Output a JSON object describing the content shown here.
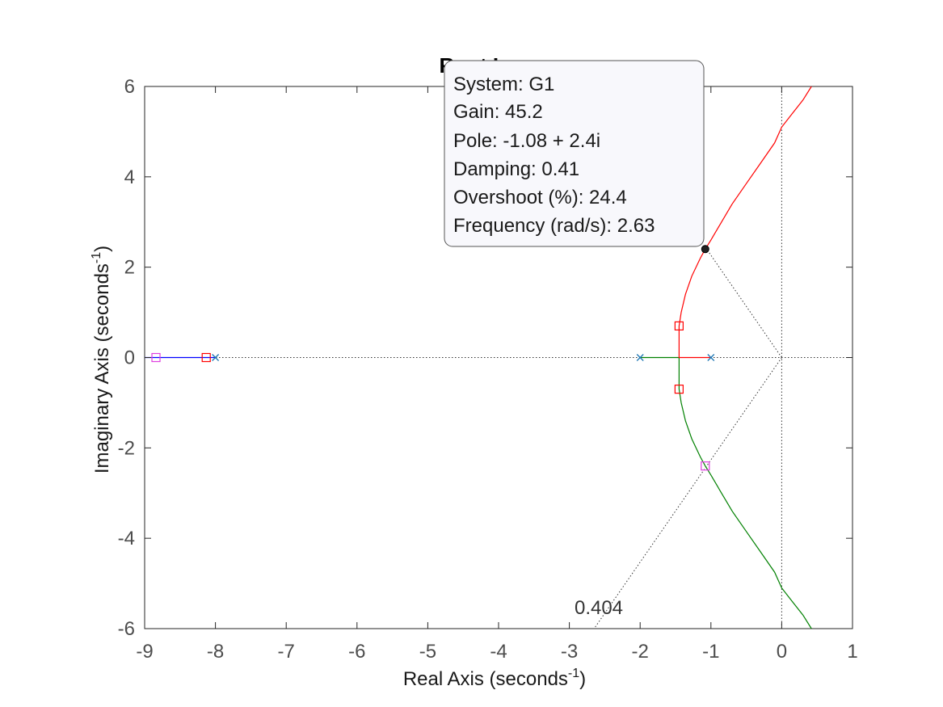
{
  "chart_data": {
    "type": "scatter",
    "title": "Root Locus",
    "xlabel": "Real Axis (seconds",
    "xlabel_sup": "-1",
    "xlabel_end": ")",
    "ylabel": "Imaginary Axis (seconds",
    "ylabel_sup": "-1",
    "ylabel_end": ")",
    "xlim": [
      -9,
      1
    ],
    "ylim": [
      -6,
      6
    ],
    "xticks": [
      -9,
      -8,
      -7,
      -6,
      -5,
      -4,
      -3,
      -2,
      -1,
      0,
      1
    ],
    "yticks": [
      -6,
      -4,
      -2,
      0,
      2,
      4,
      6
    ],
    "grid": false,
    "open_loop_poles": [
      [
        -8,
        0
      ],
      [
        -2,
        0
      ],
      [
        -1,
        0
      ]
    ],
    "series": [
      {
        "color": "#0000ff",
        "points": [
          [
            -8,
            0
          ],
          [
            -8.3,
            0
          ],
          [
            -8.6,
            0
          ],
          [
            -9,
            0
          ]
        ]
      },
      {
        "color": "#008000",
        "points": [
          [
            -2,
            0
          ],
          [
            -1.45,
            0
          ],
          [
            -1.45,
            -0.35
          ],
          [
            -1.45,
            -0.7
          ],
          [
            -1.42,
            -1.0
          ],
          [
            -1.36,
            -1.4
          ],
          [
            -1.27,
            -1.8
          ],
          [
            -1.15,
            -2.2
          ],
          [
            -1.08,
            -2.4
          ],
          [
            -1.0,
            -2.6
          ],
          [
            -0.85,
            -3.0
          ],
          [
            -0.7,
            -3.4
          ],
          [
            -0.5,
            -3.85
          ],
          [
            -0.3,
            -4.3
          ],
          [
            -0.1,
            -4.75
          ],
          [
            0.0,
            -5.1
          ],
          [
            0.15,
            -5.4
          ],
          [
            0.3,
            -5.7
          ],
          [
            0.42,
            -6
          ]
        ]
      },
      {
        "color": "#ff0000",
        "points": [
          [
            -1,
            0
          ],
          [
            -1.45,
            0
          ],
          [
            -1.45,
            0.35
          ],
          [
            -1.45,
            0.7
          ],
          [
            -1.42,
            1.0
          ],
          [
            -1.36,
            1.4
          ],
          [
            -1.27,
            1.8
          ],
          [
            -1.15,
            2.2
          ],
          [
            -1.08,
            2.4
          ],
          [
            -1.0,
            2.6
          ],
          [
            -0.85,
            3.0
          ],
          [
            -0.7,
            3.4
          ],
          [
            -0.5,
            3.85
          ],
          [
            -0.3,
            4.3
          ],
          [
            -0.1,
            4.75
          ],
          [
            0.0,
            5.1
          ],
          [
            0.15,
            5.4
          ],
          [
            0.3,
            5.7
          ],
          [
            0.42,
            6
          ]
        ]
      }
    ],
    "design_markers_red": [
      [
        -8.13,
        0
      ],
      [
        -1.45,
        0.7
      ],
      [
        -1.45,
        -0.7
      ]
    ],
    "design_markers_magenta": [
      [
        -8.84,
        0
      ],
      [
        -1.08,
        -2.4
      ]
    ],
    "selected_point": [
      -1.08,
      2.4
    ],
    "damping_line": {
      "zeta": 0.404,
      "label": "0.404"
    },
    "datatip": {
      "system": "System: G1",
      "gain": "Gain: 45.2",
      "pole": "Pole: -1.08 + 2.4i",
      "damping": "Damping: 0.41",
      "overshoot": "Overshoot (%): 24.4",
      "frequency": "Frequency (rad/s): 2.63"
    }
  }
}
